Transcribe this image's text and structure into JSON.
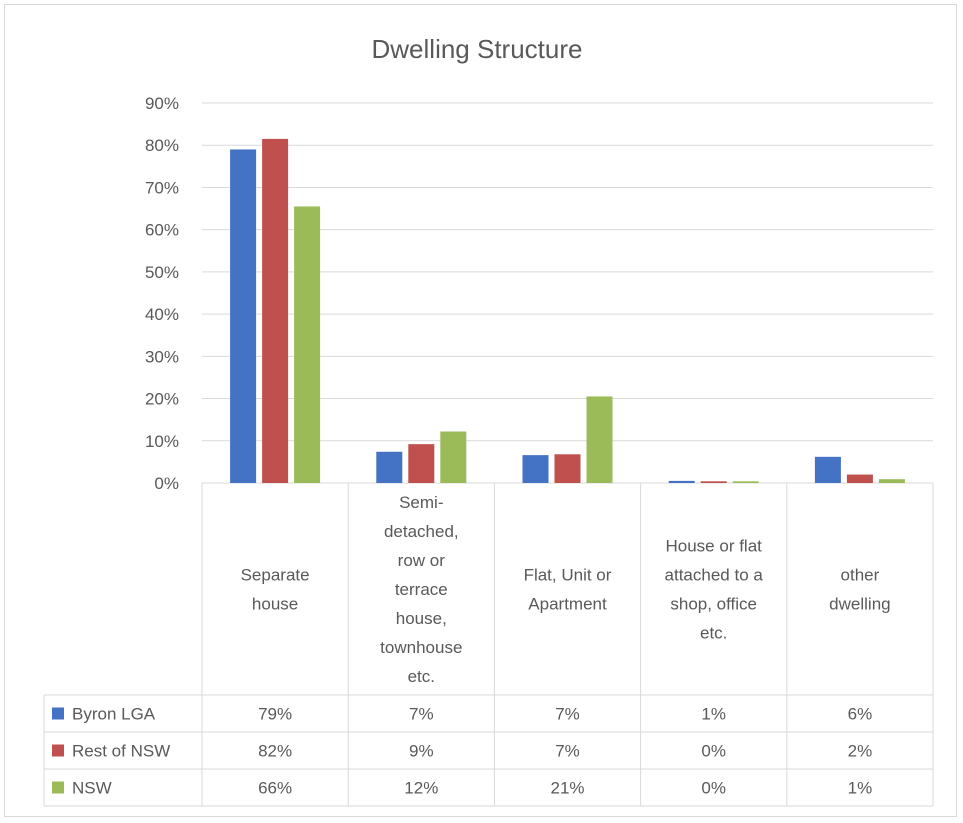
{
  "chart_data": {
    "type": "bar",
    "title": "Dwelling Structure",
    "categories": [
      [
        "Separate",
        "house"
      ],
      [
        "Semi-",
        "detached,",
        "row or",
        "terrace",
        "house,",
        "townhouse",
        "etc."
      ],
      [
        "Flat, Unit or",
        "Apartment"
      ],
      [
        "House or flat",
        "attached to a",
        "shop, office",
        "etc."
      ],
      [
        "other",
        "dwelling"
      ]
    ],
    "series": [
      {
        "name": "Byron LGA",
        "color": "#4472c4",
        "values": [
          0.79,
          0.074,
          0.066,
          0.005,
          0.062
        ],
        "labels": [
          "79%",
          "7%",
          "7%",
          "1%",
          "6%"
        ]
      },
      {
        "name": "Rest of NSW",
        "color": "#c0504d",
        "values": [
          0.815,
          0.092,
          0.068,
          0.004,
          0.02
        ],
        "labels": [
          "82%",
          "9%",
          "7%",
          "0%",
          "2%"
        ]
      },
      {
        "name": "NSW",
        "color": "#9bbb59",
        "values": [
          0.655,
          0.122,
          0.205,
          0.004,
          0.009
        ],
        "labels": [
          "66%",
          "12%",
          "21%",
          "0%",
          "1%"
        ]
      }
    ],
    "ylim": [
      0,
      0.9
    ],
    "yticks": [
      "0%",
      "10%",
      "20%",
      "30%",
      "40%",
      "50%",
      "60%",
      "70%",
      "80%",
      "90%"
    ],
    "grid": true,
    "legend": "data-table"
  }
}
